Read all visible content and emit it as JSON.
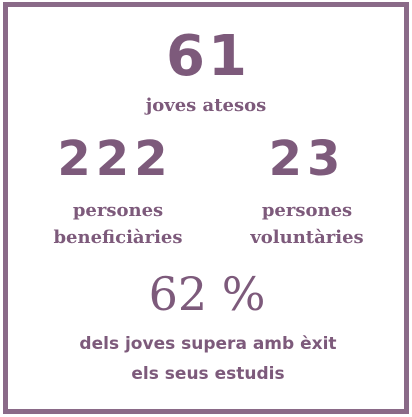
{
  "stats": [
    {
      "value": 61,
      "lines": [
        "joves atesos"
      ]
    },
    {
      "value": 222,
      "lines": [
        "persones",
        "beneficiàries"
      ]
    },
    {
      "value": 23,
      "lines": [
        "persones",
        "voluntàries"
      ]
    },
    {
      "value": "62 %",
      "lines": [
        "dels joves supera amb èxit",
        "els seus estudis"
      ]
    }
  ]
}
